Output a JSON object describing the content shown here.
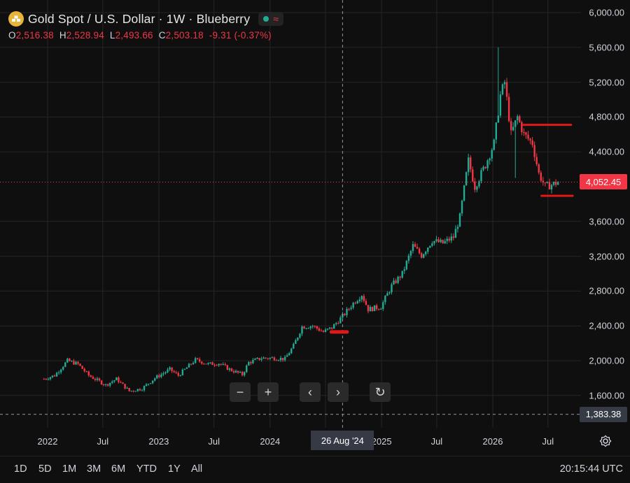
{
  "header": {
    "title": "Gold Spot / U.S. Dollar · 1W · Blueberry",
    "icon": "gold-bars-icon",
    "status_icons": [
      "market-open-dot-icon",
      "wave-icon"
    ]
  },
  "ohlc": {
    "o_label": "O",
    "o_value": "2,516.38",
    "h_label": "H",
    "h_value": "2,528.94",
    "l_label": "L",
    "l_value": "2,493.66",
    "c_label": "C",
    "c_value": "2,503.18",
    "change": "-9.31 (-0.37%)"
  },
  "colors": {
    "up": "#22ab94",
    "down": "#f23645",
    "background": "#0f0f0f",
    "grid": "#262626",
    "drawing": "#e01818"
  },
  "price_axis": {
    "ticks": [
      "6,000.00",
      "5,600.00",
      "5,200.00",
      "4,800.00",
      "4,400.00",
      "3,600.00",
      "3,200.00",
      "2,800.00",
      "2,400.00",
      "2,000.00",
      "1,600.00"
    ],
    "current_price_label": "4,052.45",
    "crosshair_price_label": "1,383.38"
  },
  "time_axis": {
    "ticks": [
      "2022",
      "Jul",
      "2023",
      "Jul",
      "2024",
      "2025",
      "Jul",
      "2026",
      "Jul"
    ],
    "crosshair_label": "26 Aug '24"
  },
  "toolbar": {
    "zoom_out": "−",
    "zoom_in": "+",
    "scroll_left": "‹",
    "scroll_right": "›",
    "reset": "↻"
  },
  "ranges": [
    "1D",
    "5D",
    "1M",
    "3M",
    "6M",
    "YTD",
    "1Y",
    "All"
  ],
  "clock": "20:15:44 UTC",
  "chart_data": {
    "type": "candlestick",
    "interval": "1W",
    "y_range": [
      1300,
      6050
    ],
    "x_range": [
      "2021-11-01",
      "2026-10-15"
    ],
    "price_ticks": [
      1600,
      2000,
      2400,
      2800,
      3200,
      3600,
      4400,
      4800,
      5200,
      5600,
      6000
    ],
    "current_price": 4052.45,
    "crosshair": {
      "date": "2024-08-26",
      "price": 1383.38
    },
    "drawings": [
      {
        "type": "hline",
        "price": 4710,
        "from": "2026-04-10",
        "to": "2026-09-15"
      },
      {
        "type": "hline",
        "price": 3895,
        "from": "2026-06-10",
        "to": "2026-09-20"
      },
      {
        "type": "hline",
        "price": 2330,
        "from": "2024-07-20",
        "to": "2024-09-10"
      }
    ],
    "anchors": [
      [
        "2021-12-20",
        1790
      ],
      [
        "2022-01-24",
        1830
      ],
      [
        "2022-03-07",
        2000
      ],
      [
        "2022-04-11",
        1960
      ],
      [
        "2022-05-16",
        1830
      ],
      [
        "2022-07-11",
        1720
      ],
      [
        "2022-08-15",
        1790
      ],
      [
        "2022-09-26",
        1650
      ],
      [
        "2022-11-07",
        1680
      ],
      [
        "2022-12-19",
        1800
      ],
      [
        "2023-02-06",
        1900
      ],
      [
        "2023-03-06",
        1830
      ],
      [
        "2023-05-01",
        2010
      ],
      [
        "2023-06-12",
        1960
      ],
      [
        "2023-07-17",
        1970
      ],
      [
        "2023-08-21",
        1900
      ],
      [
        "2023-10-02",
        1840
      ],
      [
        "2023-10-23",
        1980
      ],
      [
        "2023-12-04",
        2030
      ],
      [
        "2024-01-15",
        2030
      ],
      [
        "2024-02-19",
        2020
      ],
      [
        "2024-03-18",
        2170
      ],
      [
        "2024-04-15",
        2390
      ],
      [
        "2024-05-20",
        2400
      ],
      [
        "2024-06-24",
        2330
      ],
      [
        "2024-07-22",
        2380
      ],
      [
        "2024-08-26",
        2510
      ],
      [
        "2024-09-30",
        2660
      ],
      [
        "2024-10-28",
        2760
      ],
      [
        "2024-11-18",
        2590
      ],
      [
        "2024-12-30",
        2620
      ],
      [
        "2025-02-03",
        2860
      ],
      [
        "2025-03-10",
        3000
      ],
      [
        "2025-04-14",
        3320
      ],
      [
        "2025-05-12",
        3210
      ],
      [
        "2025-06-16",
        3380
      ],
      [
        "2025-07-21",
        3350
      ],
      [
        "2025-08-25",
        3420
      ],
      [
        "2025-09-15",
        3650
      ],
      [
        "2025-10-13",
        4300
      ],
      [
        "2025-11-03",
        4000
      ],
      [
        "2025-12-08",
        4250
      ],
      [
        "2026-01-05",
        4500
      ],
      [
        "2026-01-26",
        5050
      ],
      [
        "2026-02-09",
        5200
      ],
      [
        "2026-03-02",
        4600
      ],
      [
        "2026-03-23",
        4800
      ],
      [
        "2026-04-13",
        4600
      ],
      [
        "2026-05-11",
        4500
      ],
      [
        "2026-06-01",
        4150
      ],
      [
        "2026-06-22",
        4000
      ],
      [
        "2026-07-20",
        4030
      ],
      [
        "2026-08-03",
        4052
      ]
    ],
    "notable_wicks": [
      {
        "date": "2026-01-19",
        "high": 5600
      },
      {
        "date": "2026-03-16",
        "low": 4100
      }
    ]
  }
}
